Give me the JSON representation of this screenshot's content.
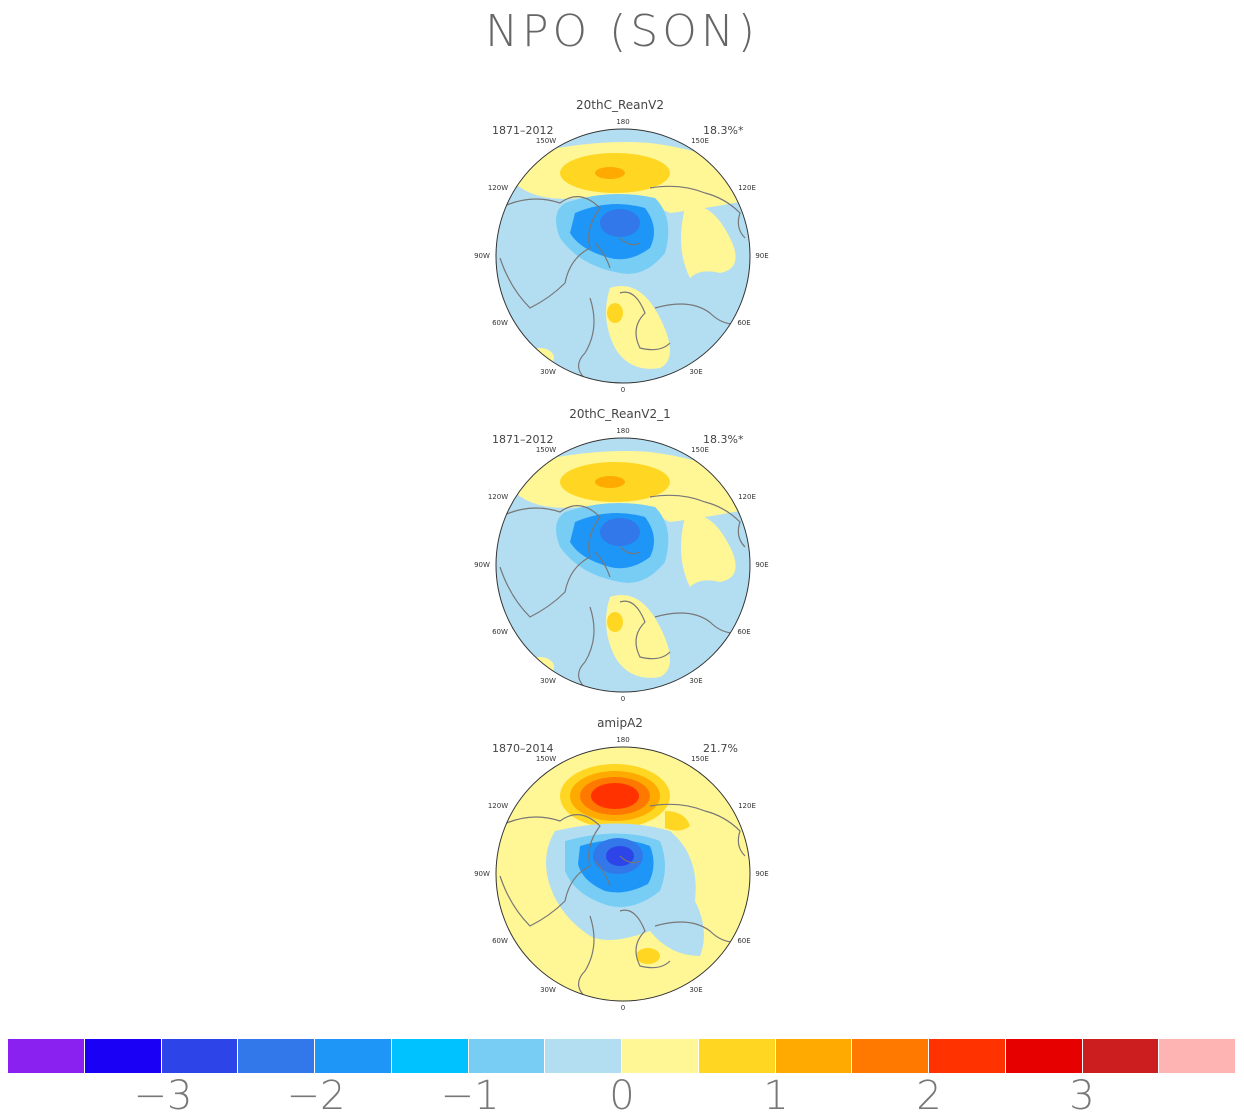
{
  "title": "NPO (SON)",
  "lon_labels": [
    "180",
    "150E",
    "120E",
    "90E",
    "60E",
    "30E",
    "0",
    "30W",
    "60W",
    "90W",
    "120W",
    "150W"
  ],
  "panels": [
    {
      "name": "20thC_ReanV2",
      "years": "1871–2012",
      "percent": "18.3%*",
      "variant": "rean"
    },
    {
      "name": "20thC_ReanV2_1",
      "years": "1871–2012",
      "percent": "18.3%*",
      "variant": "rean"
    },
    {
      "name": "amipA2",
      "years": "1870–2014",
      "percent": "21.7%",
      "variant": "amip"
    }
  ],
  "colorbar": {
    "colors": [
      "#8a21f0",
      "#1a00f5",
      "#2d44e8",
      "#3278ea",
      "#1e96f8",
      "#00c2ff",
      "#78cdf5",
      "#b3def2",
      "#fff696",
      "#ffd723",
      "#ffaa00",
      "#ff7800",
      "#ff3200",
      "#e60000",
      "#cc1e1e",
      "#ffb4b4"
    ],
    "tick_labels": [
      "−3",
      "−2",
      "−1",
      "0",
      "1",
      "2",
      "3"
    ]
  },
  "colors": {
    "land_line": "#777777",
    "background": "#ffffff"
  }
}
